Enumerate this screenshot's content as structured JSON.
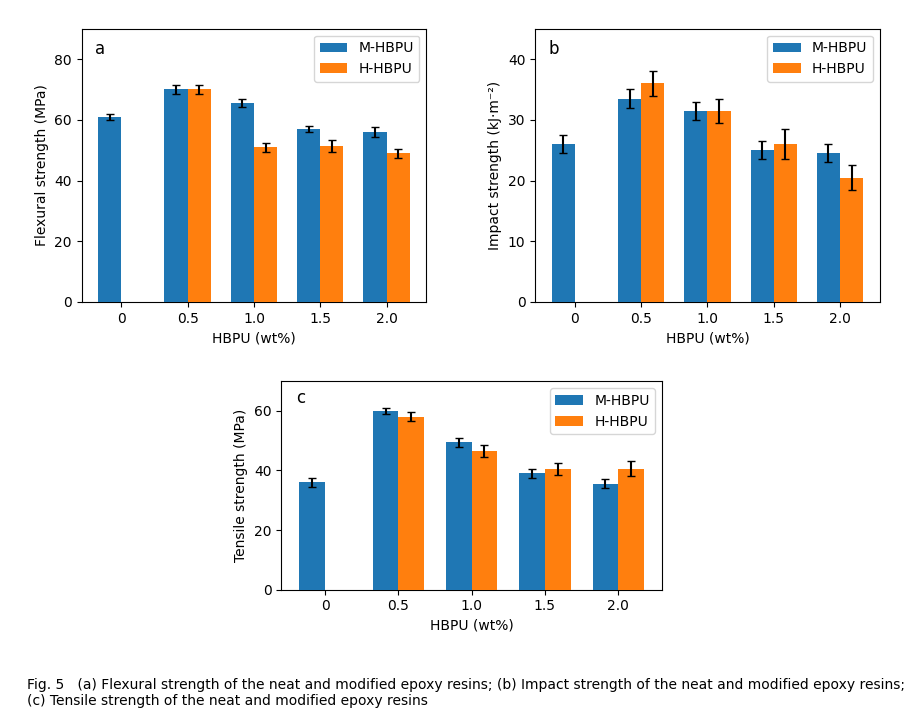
{
  "chart_data": [
    {
      "type": "bar",
      "annotations": [
        "a"
      ],
      "xlabel": "HBPU (wt%)",
      "ylabel": "Flexural strength (MPa)",
      "categories": [
        "0",
        "0.5",
        "1.0",
        "1.5",
        "2.0"
      ],
      "series": [
        {
          "name": "M-HBPU",
          "values": [
            61,
            70,
            65.5,
            57,
            56
          ],
          "errors": [
            1.0,
            1.5,
            1.2,
            1.0,
            1.5
          ]
        },
        {
          "name": "H-HBPU",
          "values": [
            null,
            70,
            51,
            51.5,
            49
          ],
          "errors": [
            null,
            1.5,
            1.5,
            2.0,
            1.5
          ]
        }
      ],
      "ylim": [
        0,
        90
      ],
      "yticks": [
        0,
        20,
        40,
        60,
        80
      ],
      "legend": "upper right",
      "grid": false
    },
    {
      "type": "bar",
      "annotations": [
        "b"
      ],
      "xlabel": "HBPU (wt%)",
      "ylabel": "Impact strength (kJ·m⁻²)",
      "categories": [
        "0",
        "0.5",
        "1.0",
        "1.5",
        "2.0"
      ],
      "series": [
        {
          "name": "M-HBPU",
          "values": [
            26,
            33.5,
            31.5,
            25,
            24.5
          ],
          "errors": [
            1.5,
            1.5,
            1.5,
            1.5,
            1.5
          ]
        },
        {
          "name": "H-HBPU",
          "values": [
            null,
            36,
            31.5,
            26,
            20.5
          ],
          "errors": [
            null,
            2.0,
            2.0,
            2.5,
            2.0
          ]
        }
      ],
      "ylim": [
        0,
        45
      ],
      "yticks": [
        0,
        10,
        20,
        30,
        40
      ],
      "legend": "upper right",
      "grid": false
    },
    {
      "type": "bar",
      "annotations": [
        "c"
      ],
      "xlabel": "HBPU (wt%)",
      "ylabel": "Tensile strength (MPa)",
      "categories": [
        "0",
        "0.5",
        "1.0",
        "1.5",
        "2.0"
      ],
      "series": [
        {
          "name": "M-HBPU",
          "values": [
            36,
            60,
            49.5,
            39,
            35.5
          ],
          "errors": [
            1.5,
            1.0,
            1.5,
            1.5,
            1.5
          ]
        },
        {
          "name": "H-HBPU",
          "values": [
            null,
            58,
            46.5,
            40.5,
            40.5
          ],
          "errors": [
            null,
            1.5,
            2.0,
            2.0,
            2.5
          ]
        }
      ],
      "ylim": [
        0,
        70
      ],
      "yticks": [
        0,
        20,
        40,
        60
      ],
      "legend": "upper right",
      "grid": false
    }
  ],
  "caption": "Fig. 5   (a) Flexural strength of the neat and modified epoxy resins; (b) Impact strength of the neat and modified epoxy resins; (c) Tensile strength of the neat and modified epoxy resins"
}
